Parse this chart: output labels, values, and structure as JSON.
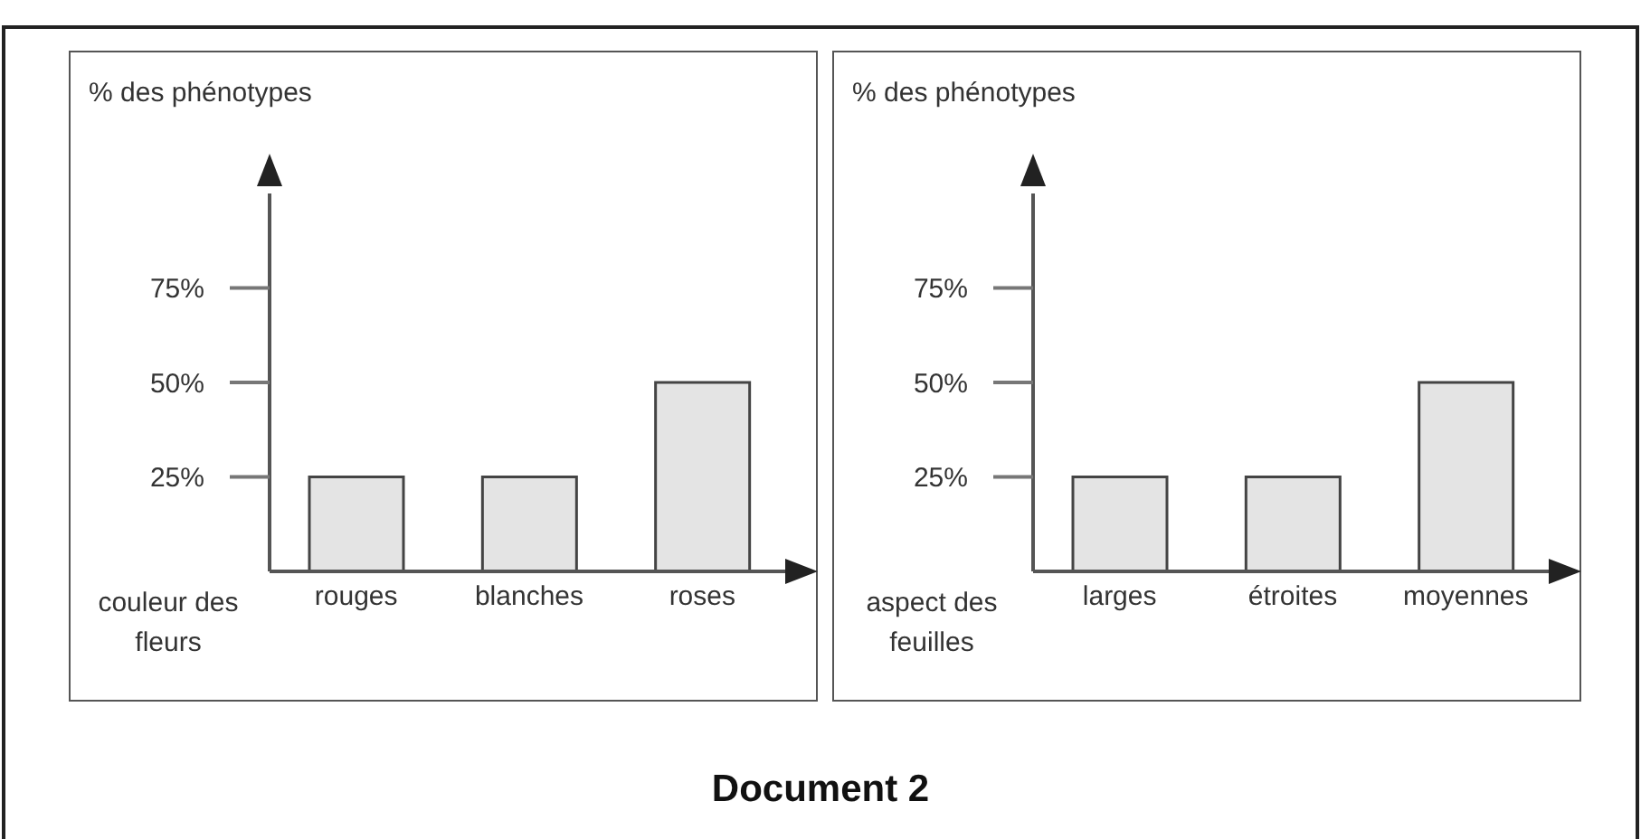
{
  "chart_data": [
    {
      "type": "bar",
      "ylabel": "% des phénotypes",
      "xlabel": "couleur des fleurs",
      "categories": [
        "rouges",
        "blanches",
        "roses"
      ],
      "values": [
        25,
        25,
        50
      ],
      "color": "#e4e4e4",
      "ylim": [
        0,
        100
      ],
      "yticks": [
        {
          "value": 25,
          "label": "25%"
        },
        {
          "value": 50,
          "label": "50%"
        },
        {
          "value": 75,
          "label": "75%"
        }
      ],
      "annotations": [
        "Document 2"
      ]
    },
    {
      "type": "bar",
      "ylabel": "% des phénotypes",
      "xlabel": "aspect des feuilles",
      "categories": [
        "larges",
        "étroites",
        "moyennes"
      ],
      "values": [
        25,
        25,
        50
      ],
      "color": "#e4e4e4",
      "ylim": [
        0,
        100
      ],
      "yticks": [
        {
          "value": 25,
          "label": "25%"
        },
        {
          "value": 50,
          "label": "50%"
        },
        {
          "value": 75,
          "label": "75%"
        }
      ]
    }
  ]
}
